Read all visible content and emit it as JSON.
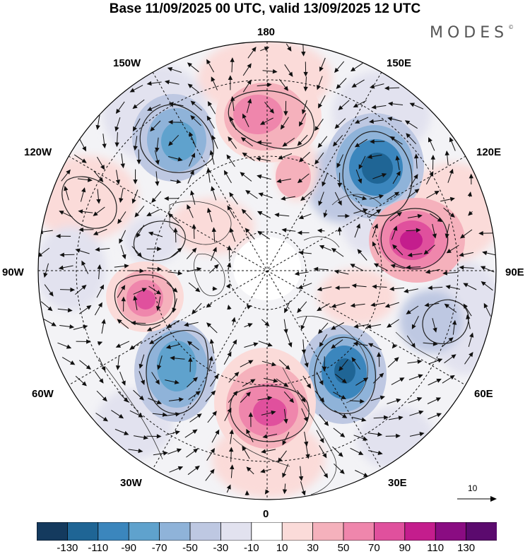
{
  "title": "Base 11/09/2025 00 UTC, valid 13/09/2025 12 UTC",
  "brand": "MODES",
  "brand_mark": "©",
  "longitude_labels": {
    "top": "180",
    "bottom": "0",
    "left": "90W",
    "right": "90E",
    "upper_left_1": "150W",
    "upper_left_2": "120W",
    "lower_left_1": "60W",
    "lower_left_2": "30W",
    "upper_right_1": "150E",
    "upper_right_2": "120E",
    "lower_right_1": "60E",
    "lower_right_2": "30E"
  },
  "reference_vector": {
    "label": "10",
    "icon": "arrow-right-icon"
  },
  "colorbar": {
    "ticks": [
      "-130",
      "-110",
      "-90",
      "-70",
      "-50",
      "-30",
      "-10",
      "10",
      "30",
      "50",
      "70",
      "90",
      "110",
      "130"
    ],
    "colors": [
      "#143a5e",
      "#1f6595",
      "#3b86bd",
      "#5fa2cd",
      "#8fb3d9",
      "#bec8e2",
      "#e2e2ef",
      "#ffffff",
      "#fbdbd9",
      "#f5b1bc",
      "#ef86ac",
      "#e0509d",
      "#c41d8d",
      "#8a0c82",
      "#5b0a6e"
    ]
  },
  "anomaly_centers": [
    {
      "name": "blue-northwest",
      "sign": "negative",
      "color": "#3b86bd"
    },
    {
      "name": "pink-north",
      "sign": "positive",
      "color": "#ef86ac"
    },
    {
      "name": "blue-northeast",
      "sign": "negative",
      "color": "#1f6595"
    },
    {
      "name": "pink-east",
      "sign": "positive",
      "color": "#c41d8d"
    },
    {
      "name": "blue-southeast",
      "sign": "negative",
      "color": "#1f6595"
    },
    {
      "name": "pink-south",
      "sign": "positive",
      "color": "#e0509d"
    },
    {
      "name": "blue-southwest",
      "sign": "negative",
      "color": "#3b86bd"
    },
    {
      "name": "pink-west",
      "sign": "positive",
      "color": "#e0509d"
    }
  ]
}
